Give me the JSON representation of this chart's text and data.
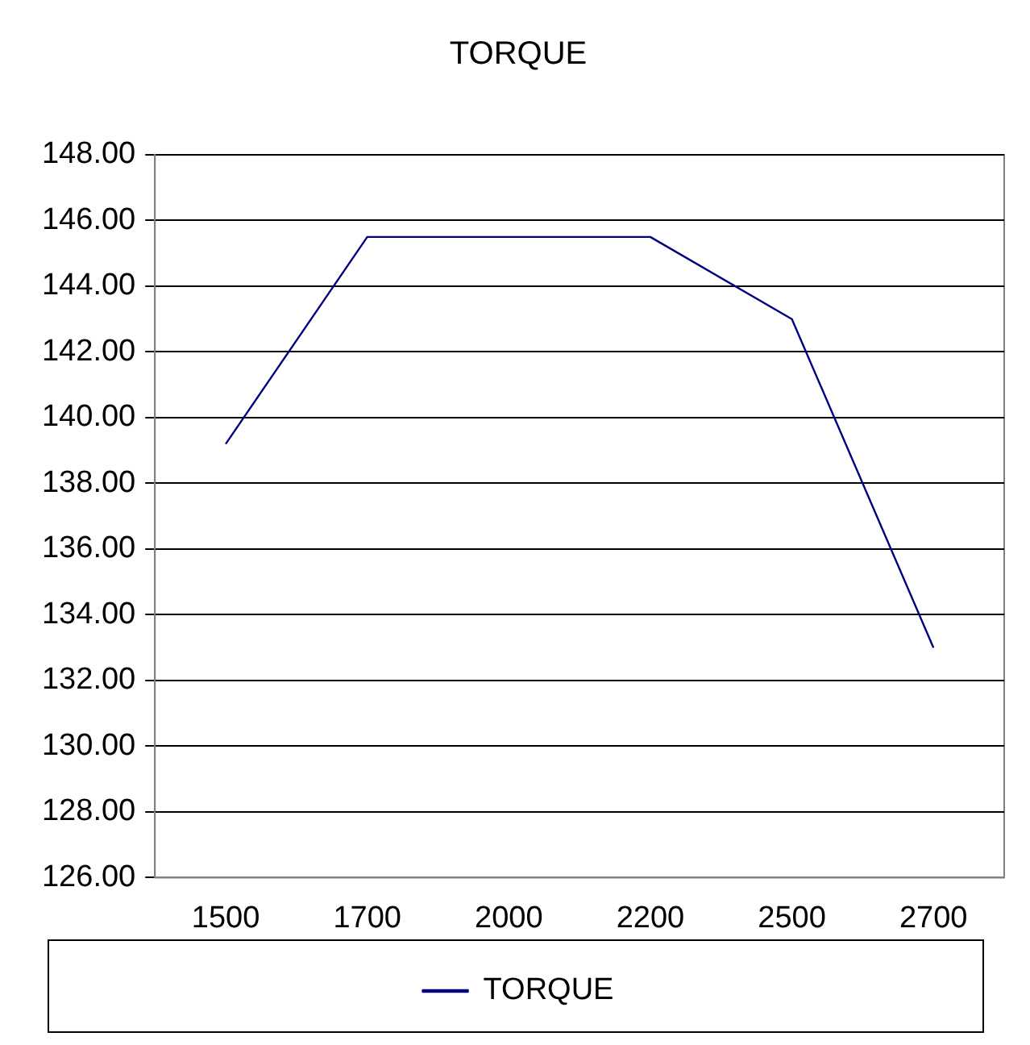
{
  "chart_data": {
    "type": "line",
    "title": "TORQUE",
    "categories": [
      "1500",
      "1700",
      "2000",
      "2200",
      "2500",
      "2700"
    ],
    "series": [
      {
        "name": "TORQUE",
        "color": "#000080",
        "values": [
          139.2,
          145.5,
          145.5,
          145.5,
          143.0,
          133.0
        ]
      }
    ],
    "ylim": [
      126,
      148
    ],
    "yticks": [
      {
        "value": 126,
        "label": "126.00"
      },
      {
        "value": 128,
        "label": "128.00"
      },
      {
        "value": 130,
        "label": "130.00"
      },
      {
        "value": 132,
        "label": "132.00"
      },
      {
        "value": 134,
        "label": "134.00"
      },
      {
        "value": 136,
        "label": "136.00"
      },
      {
        "value": 138,
        "label": "138.00"
      },
      {
        "value": 140,
        "label": "140.00"
      },
      {
        "value": 142,
        "label": "142.00"
      },
      {
        "value": 144,
        "label": "144.00"
      },
      {
        "value": 146,
        "label": "146.00"
      },
      {
        "value": 148,
        "label": "148.00"
      }
    ],
    "grid": "y",
    "legend": "bottom",
    "marker": "none",
    "line_style": "solid"
  }
}
